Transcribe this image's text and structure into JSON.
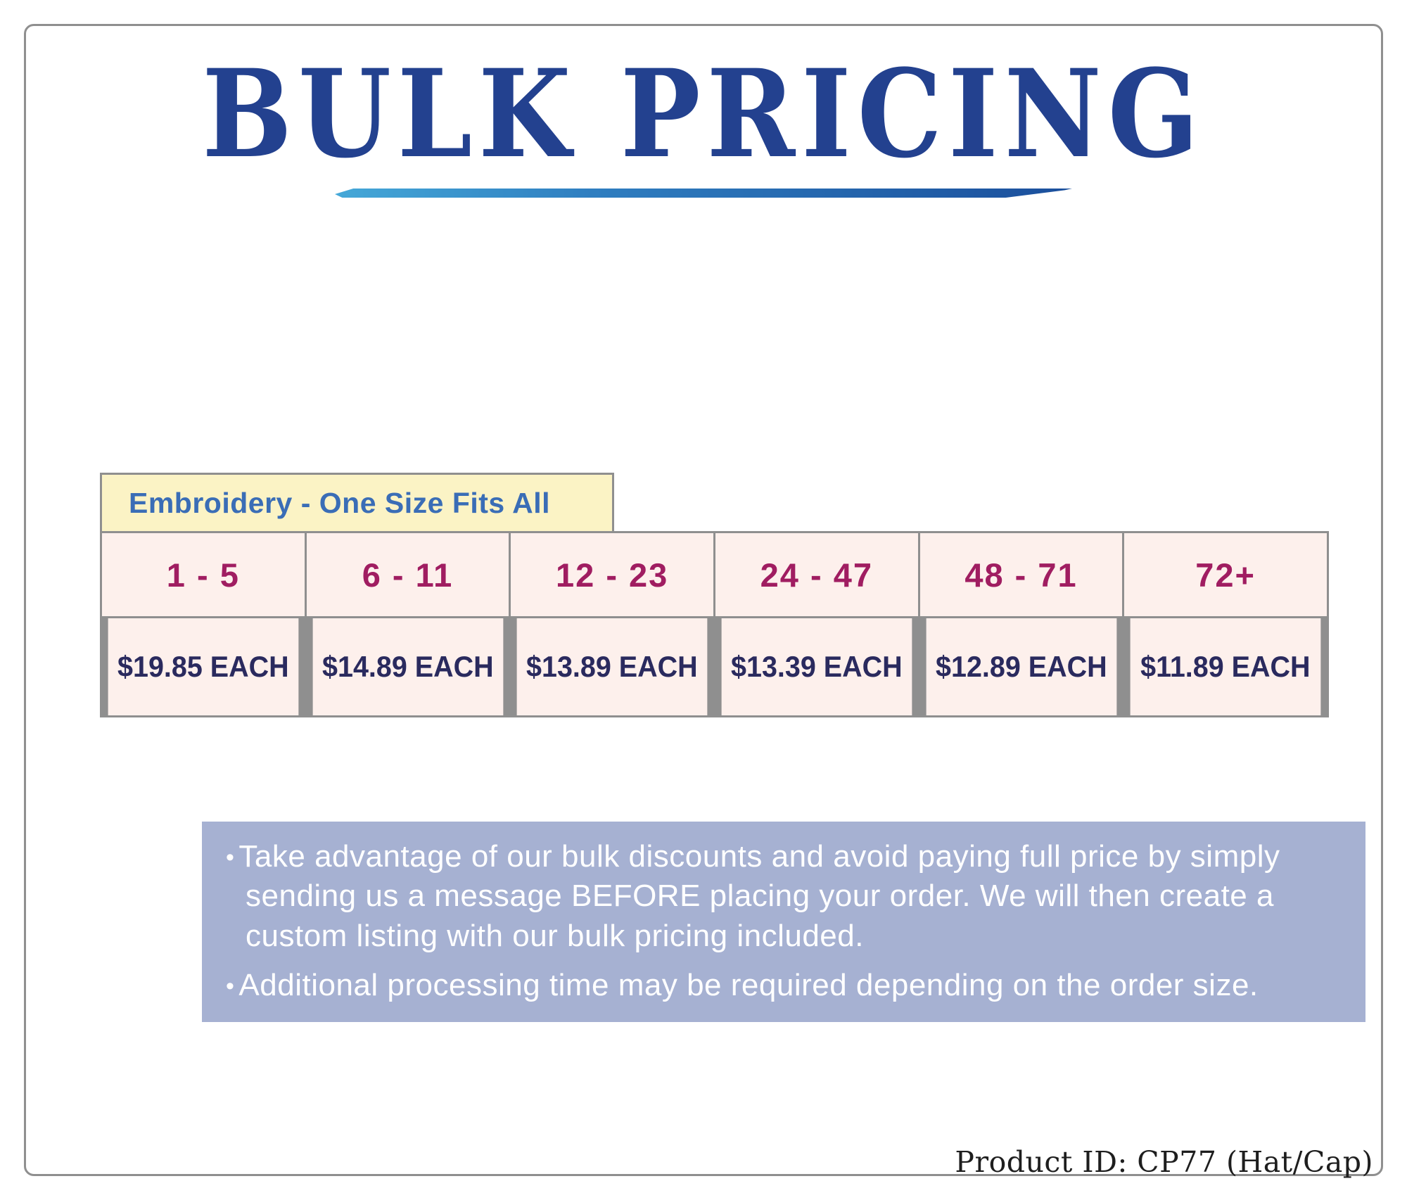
{
  "header": {
    "title": "BULK PRICING"
  },
  "pricing_table": {
    "header": "Embroidery - One Size Fits All",
    "columns": [
      {
        "range": "1 - 5",
        "price": "$19.85 EACH"
      },
      {
        "range": "6 - 11",
        "price": "$14.89 EACH"
      },
      {
        "range": "12 - 23",
        "price": "$13.89 EACH"
      },
      {
        "range": "24 - 47",
        "price": "$13.39 EACH"
      },
      {
        "range": "48 - 71",
        "price": "$12.89 EACH"
      },
      {
        "range": "72+",
        "price": "$11.89 EACH"
      }
    ]
  },
  "notes": [
    "Take advantage of our bulk discounts and avoid paying full price by simply sending us a message BEFORE placing your order. We will then create a custom listing with our bulk pricing included.",
    "Additional processing time may be required depending on the order size."
  ],
  "footer": {
    "product_id": "Product ID: CP77 (Hat/Cap)"
  },
  "colors": {
    "title-blue": "#23418f",
    "header-bg": "#fbf3c5",
    "header-text": "#3a6db6",
    "cell-bg": "#fdf0ec",
    "range-text": "#a01d61",
    "price-text": "#2a2a5e",
    "note-bg": "#a6b1d2",
    "note-text": "#ffffff",
    "border-gray": "#8f8f8f",
    "underline-start": "#45a8d8",
    "underline-end": "#1b4f9c"
  }
}
